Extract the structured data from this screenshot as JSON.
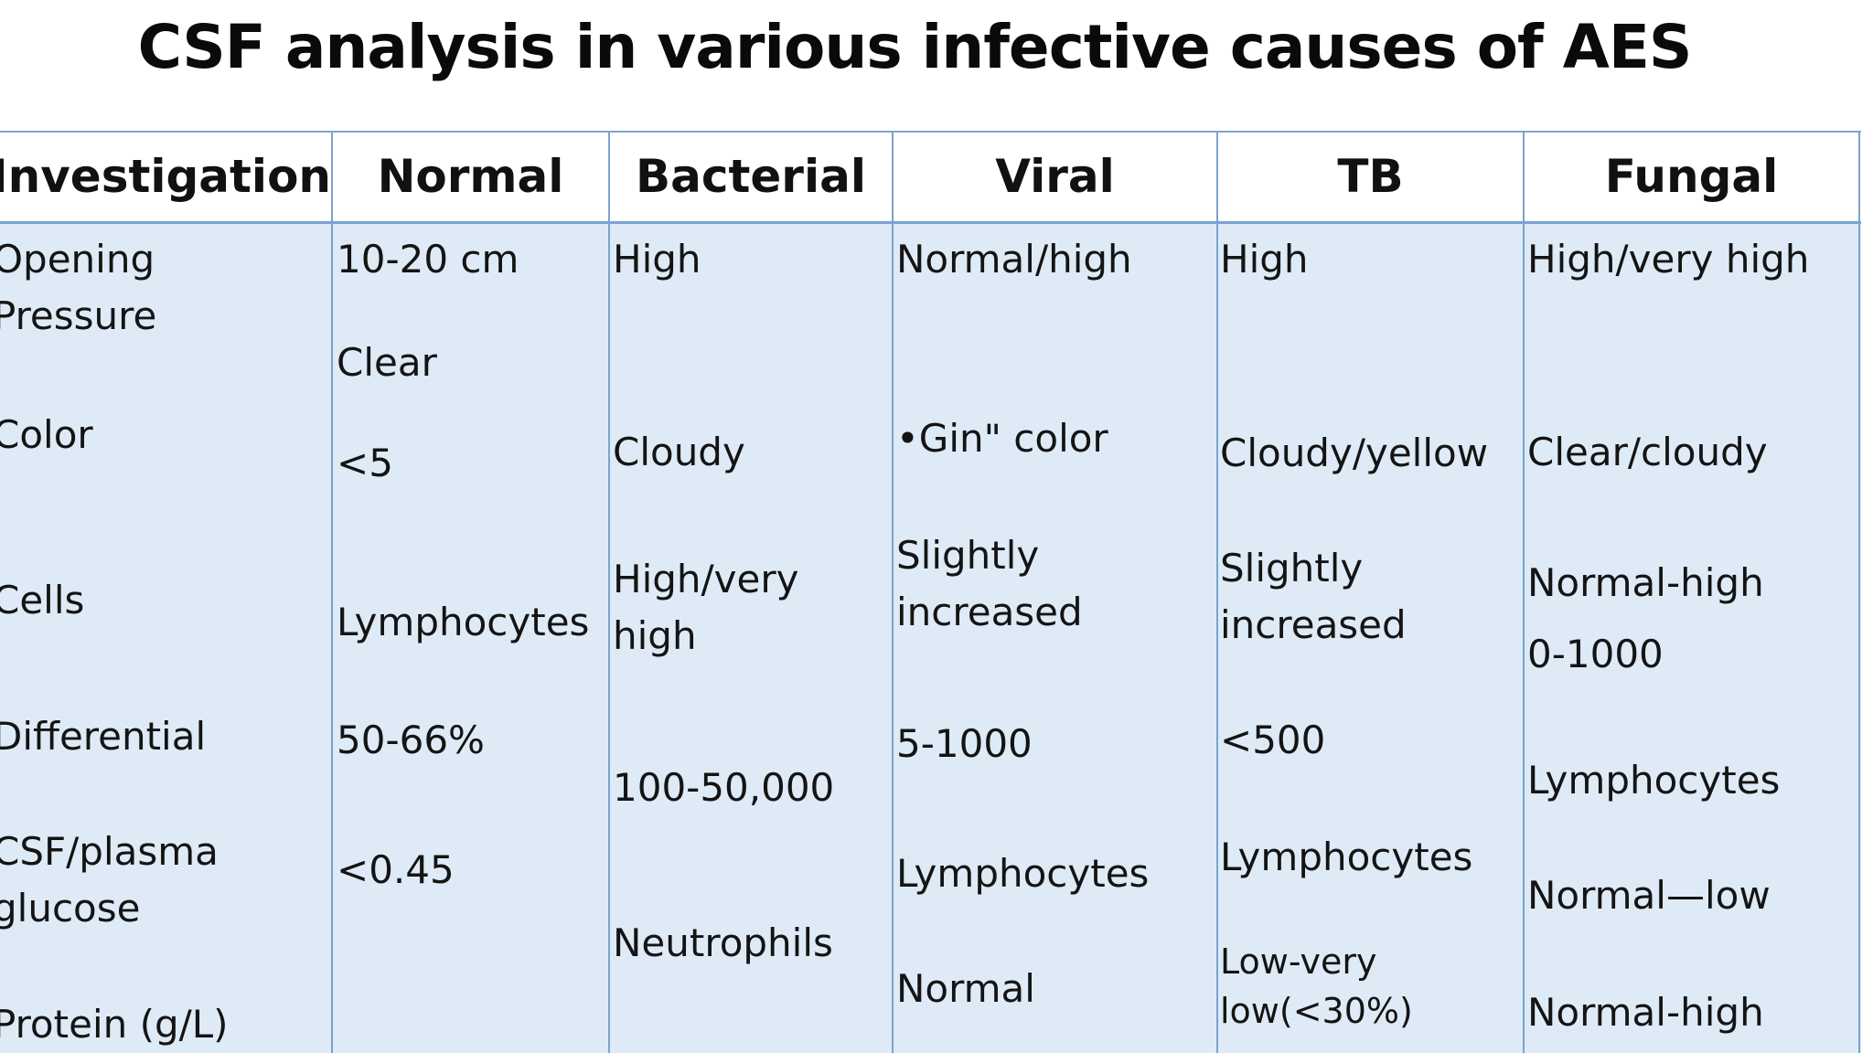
{
  "title": "CSF analysis in various infective causes of AES",
  "headers": {
    "investigation": "Investigation",
    "normal": "Normal",
    "bacterial": "Bacterial",
    "viral": "Viral",
    "tb": "TB",
    "fungal": "Fungal"
  },
  "investigation": {
    "opening_pressure_1": "Opening",
    "opening_pressure_2": "Pressure",
    "color": "Color",
    "cells": "Cells",
    "differential": "Differential",
    "glucose_1": "CSF/plasma",
    "glucose_2": "glucose",
    "protein": "Protein (g/L)"
  },
  "normal": {
    "pressure": "10-20 cm",
    "color": "Clear",
    "cells": "<5",
    "differential": "Lymphocytes",
    "differential_pct": "50-66%",
    "glucose": "<0.45"
  },
  "bacterial": {
    "pressure": "High",
    "color": "Cloudy",
    "cells_1": "High/very",
    "cells_2": "high",
    "count": "100-50,000",
    "differential": "Neutrophils"
  },
  "viral": {
    "pressure": "Normal/high",
    "color": "•Gin\" color",
    "cells_1": "Slightly",
    "cells_2": "increased",
    "count": "5-1000",
    "differential": "Lymphocytes",
    "glucose": "Normal"
  },
  "tb": {
    "pressure": "High",
    "color": "Cloudy/yellow",
    "cells_1": "Slightly",
    "cells_2": "increased",
    "count": "<500",
    "differential": "Lymphocytes",
    "glucose_1": "Low-very",
    "glucose_2": "low(<30%)"
  },
  "fungal": {
    "pressure": "High/very high",
    "color": "Clear/cloudy",
    "cells": "Normal-high",
    "count": "0-1000",
    "differential": "Lymphocytes",
    "glucose": "Normal—low",
    "protein": "Normal-high"
  },
  "colors": {
    "border": "#7aa3d0",
    "body_fill": "#deebf6",
    "header_fill": "#ffffff"
  }
}
